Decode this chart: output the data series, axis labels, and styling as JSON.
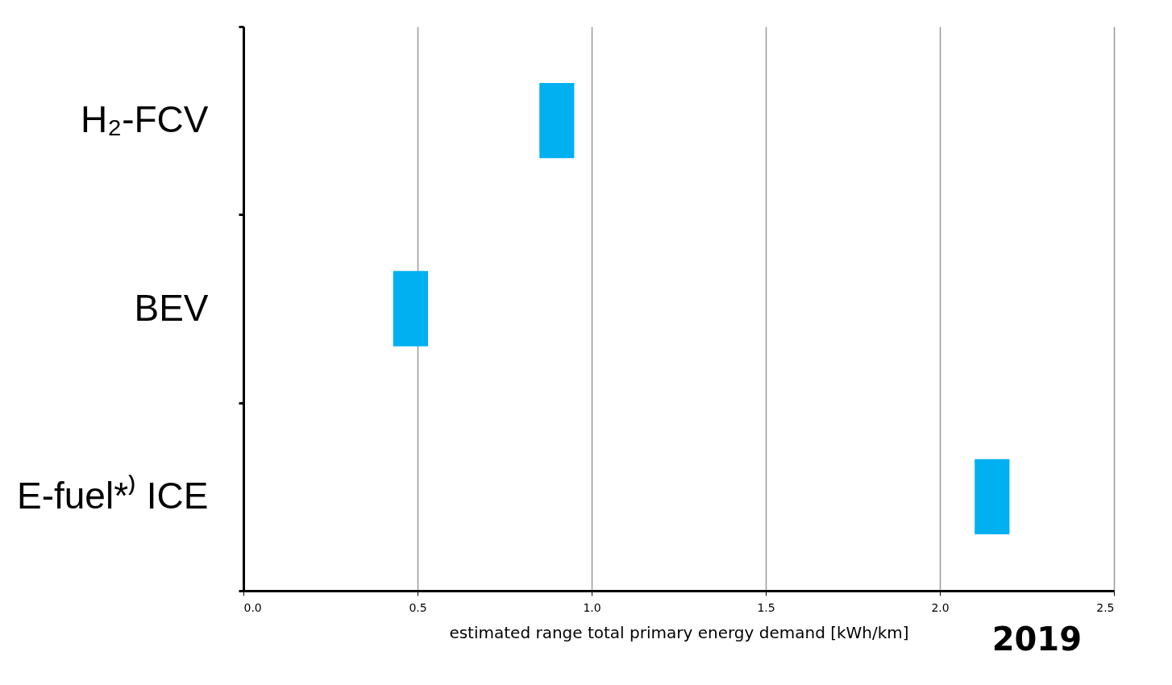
{
  "chart_data": {
    "type": "bar",
    "orientation": "horizontal",
    "categories": [
      "H₂-FCV",
      "BEV",
      "E-fuel*⁾ ICE"
    ],
    "base": [
      0.85,
      0.43,
      2.1
    ],
    "values": [
      0.1,
      0.1,
      0.1
    ],
    "color": "#00b0f0",
    "xlabel": "estimated range total primary energy demand [kWh/km]",
    "xlim": [
      0,
      2.5
    ],
    "xticks": [
      {
        "value": 0,
        "label": "0.0"
      },
      0.5,
      {
        "value": 1,
        "label": "1.0"
      },
      1.5,
      {
        "value": 2,
        "label": "2.0"
      },
      2.5
    ],
    "grid": "x",
    "annotations": [
      "2019"
    ]
  }
}
